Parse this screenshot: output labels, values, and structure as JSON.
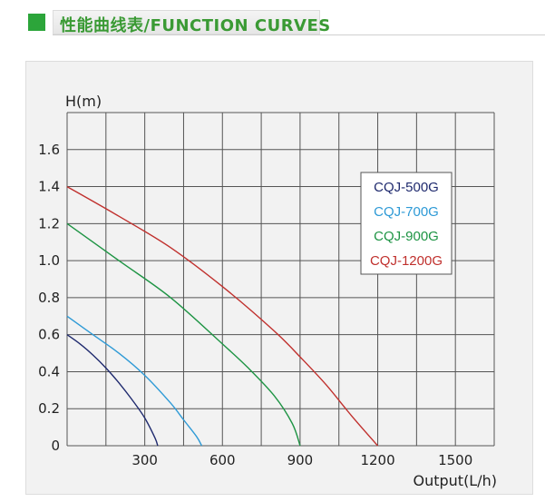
{
  "header": {
    "title": "性能曲线表/FUNCTION CURVES",
    "accent_color": "#2ca53a"
  },
  "chart_data": {
    "type": "line",
    "title": "",
    "xlabel": "Output(L/h)",
    "ylabel": "H(m)",
    "xlim": [
      0,
      1650
    ],
    "ylim": [
      0,
      1.8
    ],
    "x_ticks": [
      300,
      600,
      900,
      1200,
      1500
    ],
    "x_tick_labels": [
      "300",
      "600",
      "900",
      "1200",
      "1500"
    ],
    "y_ticks": [
      0,
      0.2,
      0.4,
      0.6,
      0.8,
      1.0,
      1.2,
      1.4,
      1.6
    ],
    "y_tick_labels": [
      "0",
      "0.2",
      "0.4",
      "0.6",
      "0.8",
      "1.0",
      "1.2",
      "1.4",
      "1.6"
    ],
    "grid": true,
    "legend_position": "top-right",
    "series": [
      {
        "name": "CQJ-500G",
        "color": "#1f2a6e",
        "x": [
          0,
          50,
          100,
          150,
          200,
          250,
          300,
          340,
          350
        ],
        "y": [
          0.6,
          0.55,
          0.49,
          0.42,
          0.34,
          0.25,
          0.15,
          0.04,
          0
        ]
      },
      {
        "name": "CQJ-700G",
        "color": "#2e9ad6",
        "x": [
          0,
          100,
          200,
          300,
          400,
          450,
          500,
          520
        ],
        "y": [
          0.7,
          0.6,
          0.5,
          0.38,
          0.23,
          0.14,
          0.05,
          0
        ]
      },
      {
        "name": "CQJ-900G",
        "color": "#1e9444",
        "x": [
          0,
          200,
          400,
          600,
          700,
          800,
          870,
          900
        ],
        "y": [
          1.2,
          1.0,
          0.8,
          0.55,
          0.42,
          0.27,
          0.12,
          0
        ]
      },
      {
        "name": "CQJ-1200G",
        "color": "#c0302d",
        "x": [
          0,
          200,
          400,
          600,
          800,
          900,
          1000,
          1100,
          1200
        ],
        "y": [
          1.4,
          1.24,
          1.07,
          0.86,
          0.62,
          0.48,
          0.33,
          0.16,
          0
        ]
      }
    ]
  }
}
